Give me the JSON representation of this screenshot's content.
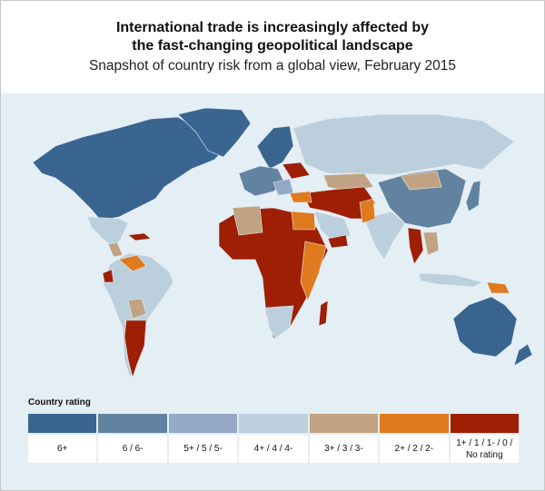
{
  "header": {
    "title_line1": "International trade is increasingly affected by",
    "title_line2": "the fast-changing geopolitical landscape",
    "subtitle": "Snapshot of country risk from a global view, February 2015"
  },
  "legend": {
    "title": "Country rating",
    "items": [
      {
        "label": "6+",
        "color": "#3a6591"
      },
      {
        "label": "6 / 6-",
        "color": "#62839f"
      },
      {
        "label": "5+ / 5 / 5-",
        "color": "#93a9c5"
      },
      {
        "label": "4+ / 4 / 4-",
        "color": "#bccfdc"
      },
      {
        "label": "3+ / 3 / 3-",
        "color": "#c1a383"
      },
      {
        "label": "2+ / 2 / 2-",
        "color": "#e07a1f"
      },
      {
        "label": "1+ / 1 / 1- / 0 / No rating",
        "color": "#9e1f04"
      }
    ]
  },
  "colors": {
    "ocean": "#e4eef5",
    "header_bg": "#ffffff"
  }
}
